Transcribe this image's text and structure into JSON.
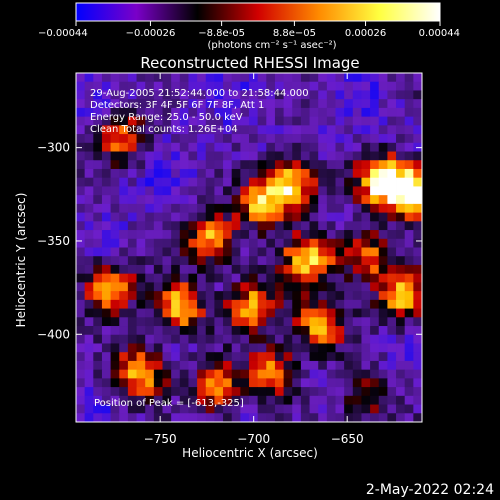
{
  "colorbar": {
    "tick_labels": [
      "-0.00044",
      "-0.00026",
      "-8.8e-05",
      "8.8e-05",
      "0.00026",
      "0.00044"
    ],
    "unit_label": "(photons cm⁻² s⁻¹ asec⁻²)",
    "range": [
      -0.00044,
      0.00044
    ],
    "colors": [
      "#0000ff",
      "#7a00c8",
      "#000000",
      "#d10000",
      "#ff8a00",
      "#ffff40",
      "#ffffff"
    ]
  },
  "chart_data": {
    "type": "heatmap",
    "title": "Reconstructed RHESSI Image",
    "xlabel": "Heliocentric X (arcsec)",
    "ylabel": "Heliocentric Y (arcsec)",
    "xlim": [
      -795,
      -610
    ],
    "ylim": [
      -447,
      -260
    ],
    "x_ticks": [
      -750,
      -700,
      -650
    ],
    "y_ticks": [
      -300,
      -350,
      -400
    ],
    "x_tick_labels": [
      "−750",
      "−700",
      "−650"
    ],
    "y_tick_labels": [
      "−300",
      "−350",
      "−400"
    ],
    "annotations": [
      "29-Aug-2005 21:52:44.000 to 21:58:44.000",
      "Detectors: 3F 4F 5F 6F 7F 8F, Att 1",
      "Energy Range: 25.0 - 50.0 keV",
      "Clean     Total counts: 1.26E+04"
    ],
    "peak_label": "Position of Peak = [-613,-325]",
    "peak": [
      -613,
      -325
    ],
    "bright_regions": [
      {
        "x": -630,
        "y": -318,
        "level": 1.0
      },
      {
        "x": -613,
        "y": -325,
        "level": 1.0
      },
      {
        "x": -680,
        "y": -318,
        "level": 0.85
      },
      {
        "x": -695,
        "y": -330,
        "level": 0.75
      },
      {
        "x": -722,
        "y": -350,
        "level": 0.8
      },
      {
        "x": -740,
        "y": -385,
        "level": 0.85
      },
      {
        "x": -778,
        "y": -375,
        "level": 0.8
      },
      {
        "x": -700,
        "y": -385,
        "level": 0.75
      },
      {
        "x": -670,
        "y": -360,
        "level": 0.8
      },
      {
        "x": -665,
        "y": -395,
        "level": 0.75
      },
      {
        "x": -640,
        "y": -358,
        "level": 0.7
      },
      {
        "x": -620,
        "y": -380,
        "level": 0.75
      },
      {
        "x": -760,
        "y": -420,
        "level": 0.8
      },
      {
        "x": -720,
        "y": -430,
        "level": 0.7
      },
      {
        "x": -690,
        "y": -420,
        "level": 0.65
      },
      {
        "x": -770,
        "y": -295,
        "level": 0.6
      },
      {
        "x": -640,
        "y": -435,
        "level": 0.5
      }
    ]
  },
  "footer": {
    "date": "2-May-2022 02:24"
  }
}
